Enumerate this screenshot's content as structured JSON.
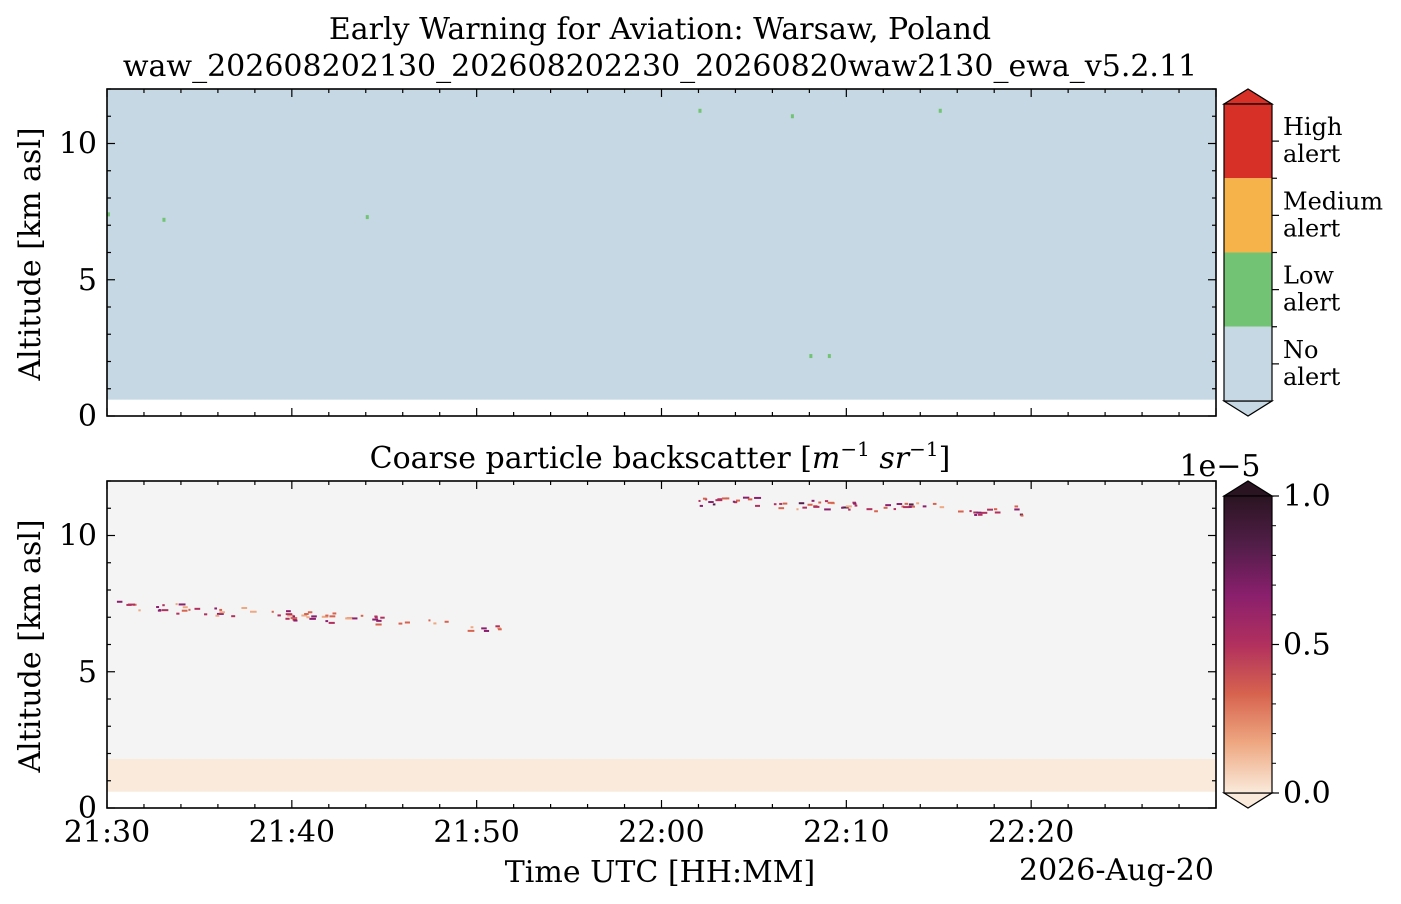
{
  "figure": {
    "title_line1": "Early Warning for Aviation: Warsaw, Poland",
    "title_line2": "waw_202608202130_202608202230_20260820waw2130_ewa_v5.2.11",
    "xlabel": "Time UTC [HH:MM]",
    "date_label": "2026-Aug-20",
    "x_tick_labels": [
      "21:30",
      "21:40",
      "21:50",
      "22:00",
      "22:10",
      "22:20"
    ]
  },
  "chart_data": [
    {
      "type": "heatmap",
      "panel": "alert",
      "title": "",
      "ylabel": "Altitude [km asl]",
      "x_range": [
        "21:30",
        "22:30"
      ],
      "ylim": [
        0,
        12
      ],
      "y_ticks": [
        0,
        5,
        10
      ],
      "data_start_altitude_km": 0.6,
      "background_class": "No alert",
      "colorbar": {
        "type": "categorical",
        "classes": [
          {
            "label_line1": "High",
            "label_line2": "alert",
            "color": "#d73027"
          },
          {
            "label_line1": "Medium",
            "label_line2": "alert",
            "color": "#f5b349"
          },
          {
            "label_line1": "Low",
            "label_line2": "alert",
            "color": "#72c474"
          },
          {
            "label_line1": "No",
            "label_line2": "alert",
            "color": "#c5d8e3"
          }
        ]
      },
      "low_alert_pixels": [
        {
          "time": "21:30",
          "altitude_km": 7.4
        },
        {
          "time": "21:33",
          "altitude_km": 7.2
        },
        {
          "time": "21:44",
          "altitude_km": 7.3
        },
        {
          "time": "22:02",
          "altitude_km": 11.2
        },
        {
          "time": "22:07",
          "altitude_km": 11.0
        },
        {
          "time": "22:08",
          "altitude_km": 2.2
        },
        {
          "time": "22:09",
          "altitude_km": 2.2
        },
        {
          "time": "22:15",
          "altitude_km": 11.2
        }
      ]
    },
    {
      "type": "heatmap",
      "panel": "coarse_backscatter",
      "title": "Coarse particle backscatter [m⁻¹ sr⁻¹]",
      "title_text": "Coarse particle backscatter [",
      "title_unit": "m",
      "title_unit2": "sr",
      "title_exp": "−1",
      "title_close": "]",
      "ylabel": "Altitude [km asl]",
      "x_range": [
        "21:30",
        "22:30"
      ],
      "ylim": [
        0,
        12
      ],
      "y_ticks": [
        0,
        5,
        10
      ],
      "data_start_altitude_km": 0.6,
      "background_color": "#f4f4f4",
      "colorbar": {
        "multiplier": "1e−5",
        "vmin": 0.0,
        "vmax": 1.0,
        "ticks": [
          "0.0",
          "0.5",
          "1.0"
        ],
        "colors": [
          "#faeadb",
          "#eea882",
          "#d7634e",
          "#b1305e",
          "#8a1f6d",
          "#521e49",
          "#2a1421"
        ]
      },
      "features": [
        {
          "name": "boundary layer aerosol",
          "altitude_range_km": [
            0.6,
            1.8
          ],
          "level": 0.03
        },
        {
          "name": "mid-level layer",
          "time_range": [
            "21:30",
            "21:52"
          ],
          "altitude_km": [
            7.5,
            6.6
          ],
          "level": 0.4
        },
        {
          "name": "upper-level layer",
          "time_range": [
            "22:02",
            "22:20"
          ],
          "altitude_km": [
            11.3,
            10.9
          ],
          "level": 0.45
        }
      ]
    }
  ]
}
